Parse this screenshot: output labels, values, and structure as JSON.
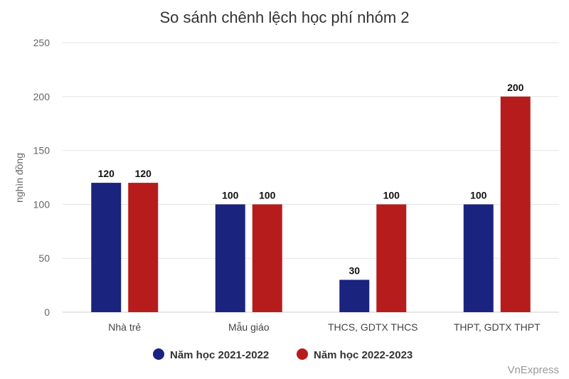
{
  "chart_data": {
    "type": "bar",
    "title": "So sánh chênh lệch học phí nhóm 2",
    "ylabel": "nghìn đồng",
    "xlabel": "",
    "ylim": [
      0,
      250
    ],
    "yticks": [
      0,
      50,
      100,
      150,
      200,
      250
    ],
    "grid": true,
    "legend_position": "bottom",
    "categories": [
      "Nhà trẻ",
      "Mẫu giáo",
      "THCS, GDTX THCS",
      "THPT, GDTX THPT"
    ],
    "series": [
      {
        "name": "Năm học 2021-2022",
        "color": "#1a237e",
        "values": [
          120,
          100,
          30,
          100
        ]
      },
      {
        "name": "Năm học 2022-2023",
        "color": "#b71c1c",
        "values": [
          120,
          100,
          100,
          200
        ]
      }
    ]
  },
  "credit": "VnExpress"
}
